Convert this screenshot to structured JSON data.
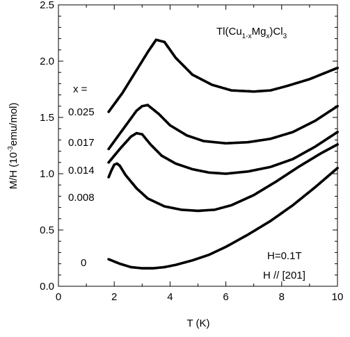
{
  "chart_data": {
    "type": "scatter",
    "xlabel": "T (K)",
    "ylabel": "M/H (10",
    "ylabel_sup": "-3",
    "ylabel_rest": "emu/mol)",
    "xlim": [
      0,
      10
    ],
    "ylim": [
      0,
      2.5
    ],
    "x_ticks": [
      "0",
      "2",
      "4",
      "6",
      "8",
      "10"
    ],
    "y_ticks": [
      "0.0",
      "0.5",
      "1.0",
      "1.5",
      "2.0",
      "2.5"
    ],
    "x_tick_values": [
      0,
      2,
      4,
      6,
      8,
      10
    ],
    "y_tick_values": [
      0,
      0.5,
      1.0,
      1.5,
      2.0,
      2.5
    ],
    "grid": false,
    "color": "#000000",
    "compound": {
      "t1": "Tl(Cu",
      "s1": "1-x",
      "t2": "Mg",
      "s2": "x",
      "t3": ")Cl",
      "s3": "3"
    },
    "x_header": "x =",
    "field_label": "H=0.1T",
    "direction_label": "H // [201]",
    "series": [
      {
        "name": "0.025",
        "x": [
          1.8,
          2.3,
          2.8,
          3.2,
          3.5,
          3.8,
          4.2,
          4.8,
          5.5,
          6.2,
          7.0,
          7.6,
          8.2,
          9.0,
          10.0
        ],
        "y": [
          1.55,
          1.72,
          1.92,
          2.08,
          2.19,
          2.17,
          2.03,
          1.88,
          1.79,
          1.74,
          1.73,
          1.74,
          1.78,
          1.84,
          1.94
        ]
      },
      {
        "name": "0.017",
        "x": [
          1.8,
          2.3,
          2.8,
          3.0,
          3.2,
          3.6,
          4.0,
          4.6,
          5.2,
          6.0,
          6.8,
          7.6,
          8.4,
          9.2,
          10.0
        ],
        "y": [
          1.22,
          1.39,
          1.56,
          1.6,
          1.61,
          1.53,
          1.43,
          1.34,
          1.29,
          1.27,
          1.28,
          1.31,
          1.37,
          1.47,
          1.6
        ]
      },
      {
        "name": "0.014",
        "x": [
          1.8,
          2.2,
          2.6,
          2.8,
          3.0,
          3.3,
          3.7,
          4.2,
          4.8,
          5.4,
          6.0,
          6.8,
          7.6,
          8.4,
          9.2,
          10.0
        ],
        "y": [
          1.1,
          1.22,
          1.33,
          1.36,
          1.35,
          1.26,
          1.16,
          1.09,
          1.04,
          1.01,
          1.0,
          1.02,
          1.06,
          1.13,
          1.24,
          1.37
        ]
      },
      {
        "name": "0.008",
        "x": [
          1.8,
          1.9,
          2.0,
          2.1,
          2.2,
          2.4,
          2.8,
          3.2,
          3.8,
          4.4,
          5.0,
          5.6,
          6.2,
          7.0,
          7.8,
          8.6,
          9.4,
          10.0
        ],
        "y": [
          0.97,
          1.03,
          1.08,
          1.09,
          1.07,
          0.99,
          0.87,
          0.78,
          0.71,
          0.68,
          0.67,
          0.68,
          0.72,
          0.81,
          0.93,
          1.06,
          1.18,
          1.26
        ]
      },
      {
        "name": "0",
        "x": [
          1.8,
          2.2,
          2.6,
          3.0,
          3.4,
          3.8,
          4.2,
          4.8,
          5.4,
          6.0,
          6.8,
          7.6,
          8.4,
          9.2,
          10.0
        ],
        "y": [
          0.24,
          0.2,
          0.17,
          0.16,
          0.16,
          0.17,
          0.19,
          0.23,
          0.28,
          0.35,
          0.46,
          0.58,
          0.72,
          0.88,
          1.05
        ]
      }
    ]
  }
}
